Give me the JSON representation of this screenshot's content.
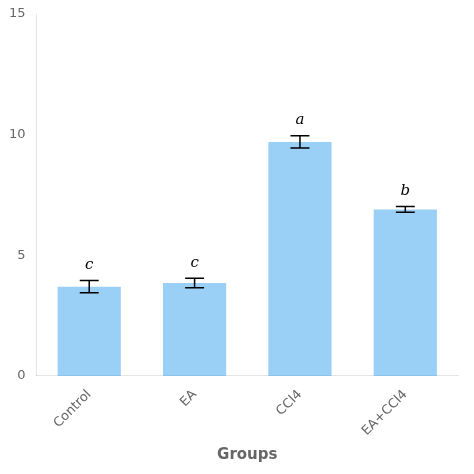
{
  "chart_data": {
    "type": "bar",
    "categories": [
      "Control",
      "EA",
      "CCl4",
      "EA+CCl4"
    ],
    "values": [
      3.7,
      3.85,
      9.7,
      6.9
    ],
    "errors": [
      0.25,
      0.2,
      0.25,
      0.12
    ],
    "annotations": [
      "c",
      "c",
      "a",
      "b"
    ],
    "xlabel": "Groups",
    "ylim": [
      0,
      15
    ],
    "yticks": [
      0,
      5,
      10,
      15
    ],
    "grid": false
  }
}
